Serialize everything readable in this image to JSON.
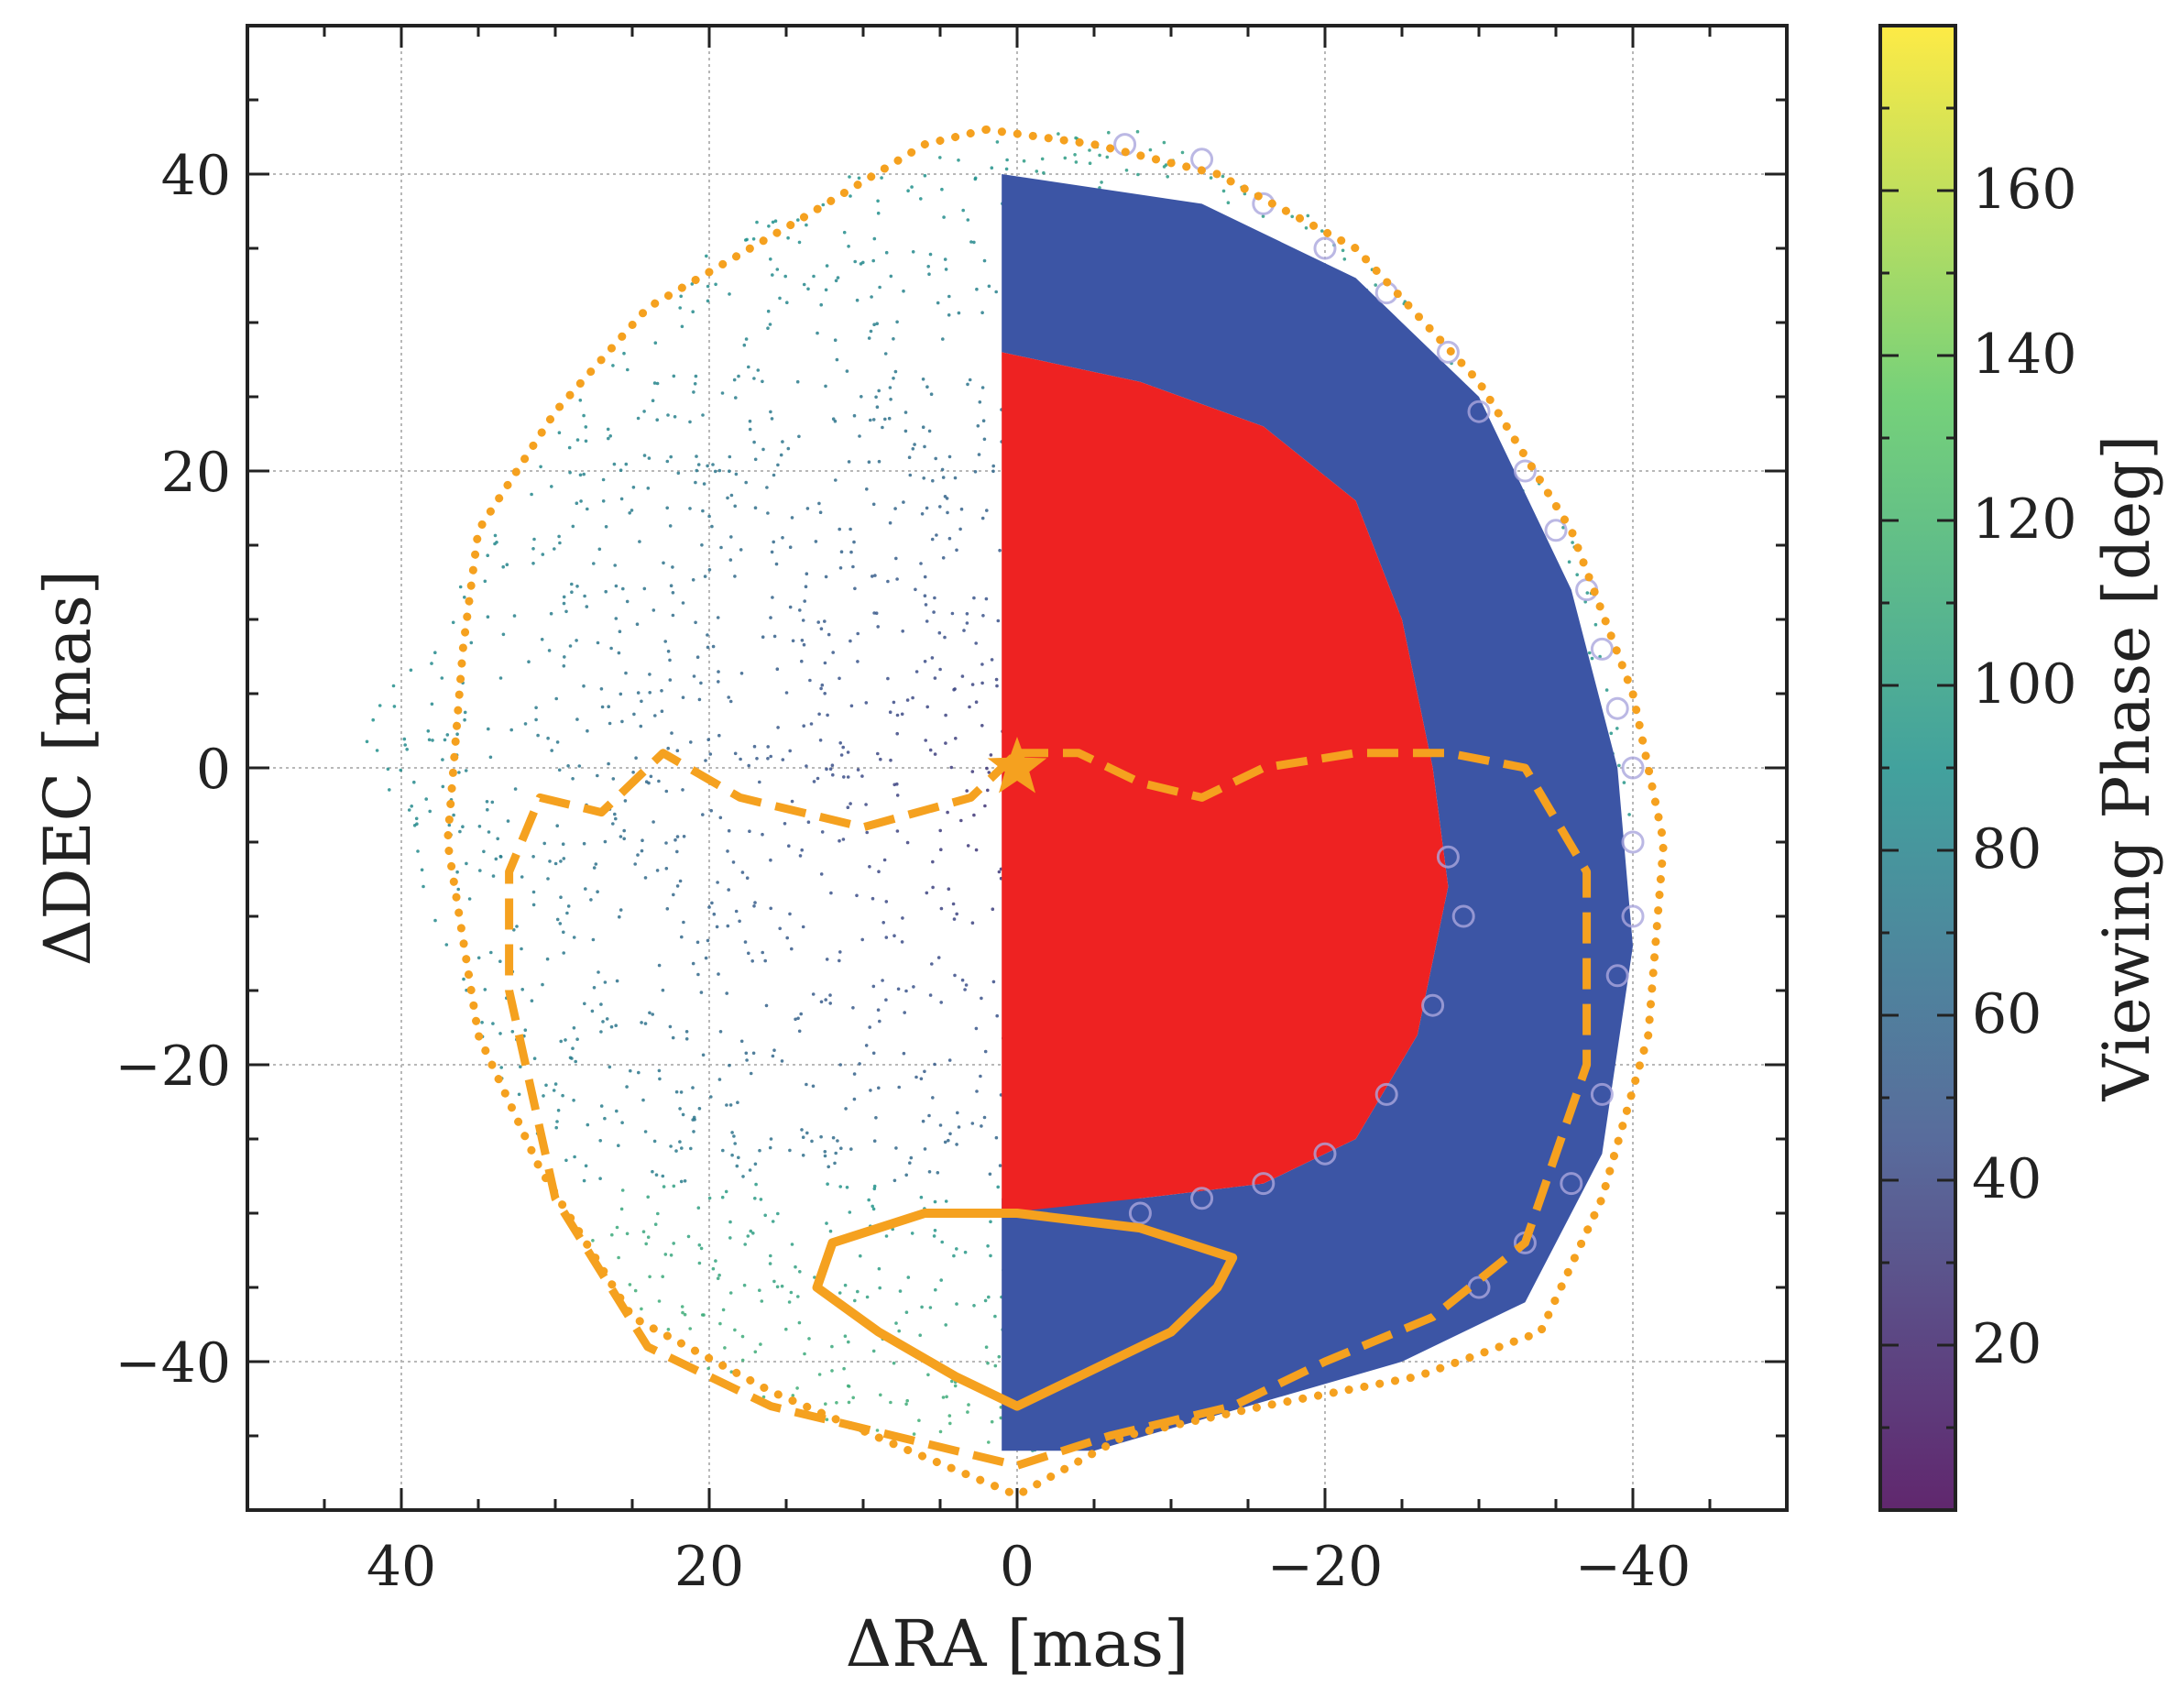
{
  "chart_data": {
    "type": "scatter",
    "title": "",
    "xlabel": "ΔRA [mas]",
    "ylabel": "ΔDEC [mas]",
    "xlim": [
      50,
      -50
    ],
    "ylim": [
      -50,
      50
    ],
    "grid": true,
    "x_ticks": [
      40,
      20,
      0,
      -20,
      -40
    ],
    "x_tick_labels": [
      "40",
      "20",
      "0",
      "−20",
      "−40"
    ],
    "y_ticks": [
      40,
      20,
      0,
      -20,
      -40
    ],
    "y_tick_labels": [
      "40",
      "20",
      "0",
      "−20",
      "−40"
    ],
    "colorbar": {
      "label": "Viewing Phase [deg]",
      "range": [
        0,
        180
      ],
      "ticks": [
        20,
        40,
        60,
        80,
        100,
        120,
        140,
        160
      ],
      "tick_labels": [
        "20",
        "40",
        "60",
        "80",
        "100",
        "120",
        "140",
        "160"
      ],
      "colormap": [
        "#440154",
        "#3b528b",
        "#21918c",
        "#5ec962",
        "#fde725"
      ]
    },
    "colors": {
      "red_region": "#ee2222",
      "blue_region": "#3c55a5",
      "contour": "#f5a11f",
      "open_circles": "#aaa6dd"
    },
    "series": [
      {
        "name": "simulated positions (colored by viewing phase)",
        "style": "points",
        "region_outline": [
          [
            43,
            2
          ],
          [
            35,
            14
          ],
          [
            28,
            26
          ],
          [
            18,
            37
          ],
          [
            8,
            41
          ],
          [
            0,
            43
          ],
          [
            -8,
            43
          ],
          [
            -18,
            38
          ],
          [
            -25,
            32
          ],
          [
            -33,
            22
          ],
          [
            -38,
            11
          ],
          [
            -40,
            -2
          ],
          [
            -38,
            -15
          ],
          [
            -35,
            -28
          ],
          [
            -30,
            -36
          ],
          [
            -20,
            -40
          ],
          [
            -10,
            -44
          ],
          [
            0,
            -47
          ],
          [
            10,
            -45
          ],
          [
            20,
            -41
          ],
          [
            28,
            -33
          ],
          [
            34,
            -20
          ],
          [
            38,
            -10
          ],
          [
            40,
            -3
          ]
        ]
      },
      {
        "name": "red region",
        "style": "filled",
        "outline": [
          [
            1,
            28
          ],
          [
            1,
            -30
          ],
          [
            -8,
            -29
          ],
          [
            -16,
            -28
          ],
          [
            -22,
            -25
          ],
          [
            -26,
            -18
          ],
          [
            -28,
            -8
          ],
          [
            -27,
            0
          ],
          [
            -25,
            10
          ],
          [
            -22,
            18
          ],
          [
            -16,
            23
          ],
          [
            -8,
            26
          ]
        ]
      },
      {
        "name": "blue region",
        "style": "filled",
        "outline": [
          [
            1,
            40
          ],
          [
            -12,
            38
          ],
          [
            -22,
            33
          ],
          [
            -30,
            25
          ],
          [
            -36,
            12
          ],
          [
            -39,
            0
          ],
          [
            -40,
            -12
          ],
          [
            -38,
            -26
          ],
          [
            -33,
            -36
          ],
          [
            -25,
            -40
          ],
          [
            -15,
            -43
          ],
          [
            -5,
            -46
          ],
          [
            1,
            -46
          ],
          [
            1,
            -29
          ],
          [
            -8,
            -29
          ],
          [
            -16,
            -28
          ],
          [
            -22,
            -25
          ],
          [
            -26,
            -18
          ],
          [
            -28,
            -8
          ],
          [
            -27,
            0
          ],
          [
            -25,
            10
          ],
          [
            -22,
            18
          ],
          [
            -16,
            23
          ],
          [
            -8,
            26
          ],
          [
            1,
            28
          ]
        ]
      },
      {
        "name": "outer dotted contour",
        "style": "dotted",
        "x": [
          2,
          -5,
          -13,
          -22,
          -30,
          -36,
          -40,
          -42,
          -41,
          -38,
          -34,
          -26,
          -16,
          -7,
          0,
          7,
          16,
          25,
          31,
          35,
          37,
          36,
          35,
          30,
          24,
          14,
          6,
          2
        ],
        "y": [
          43,
          42,
          40,
          35,
          26,
          16,
          5,
          -5,
          -18,
          -29,
          -38,
          -41,
          -43,
          -45,
          -49,
          -46,
          -42,
          -37,
          -27,
          -18,
          -5,
          8,
          16,
          24,
          31,
          37,
          42,
          43
        ]
      },
      {
        "name": "middle dashed contour",
        "style": "dashed",
        "x": [
          0,
          -4,
          -8,
          -12,
          -16,
          -22,
          -28,
          -33,
          -37,
          -37,
          -33,
          -27,
          -20,
          -14,
          -6,
          0,
          8,
          16,
          24,
          30,
          33,
          33,
          31,
          27,
          23,
          18,
          10,
          3,
          0
        ],
        "y": [
          1,
          1,
          -1,
          -2,
          0,
          1,
          1,
          0,
          -7,
          -20,
          -32,
          -37,
          -40,
          -43,
          -45,
          -47,
          -45,
          -43,
          -39,
          -29,
          -15,
          -7,
          -2,
          -3,
          1,
          -2,
          -4,
          -2,
          1
        ]
      },
      {
        "name": "inner solid contour",
        "style": "solid",
        "x": [
          0,
          -8,
          -14,
          -13,
          -10,
          -4,
          0,
          4,
          9,
          13,
          12,
          6,
          0
        ],
        "y": [
          -30,
          -31,
          -33,
          -35,
          -38,
          -41,
          -43,
          -41,
          -38,
          -35,
          -32,
          -30,
          -30
        ]
      },
      {
        "name": "marker",
        "style": "star",
        "x": [
          0
        ],
        "y": [
          0
        ]
      }
    ]
  }
}
